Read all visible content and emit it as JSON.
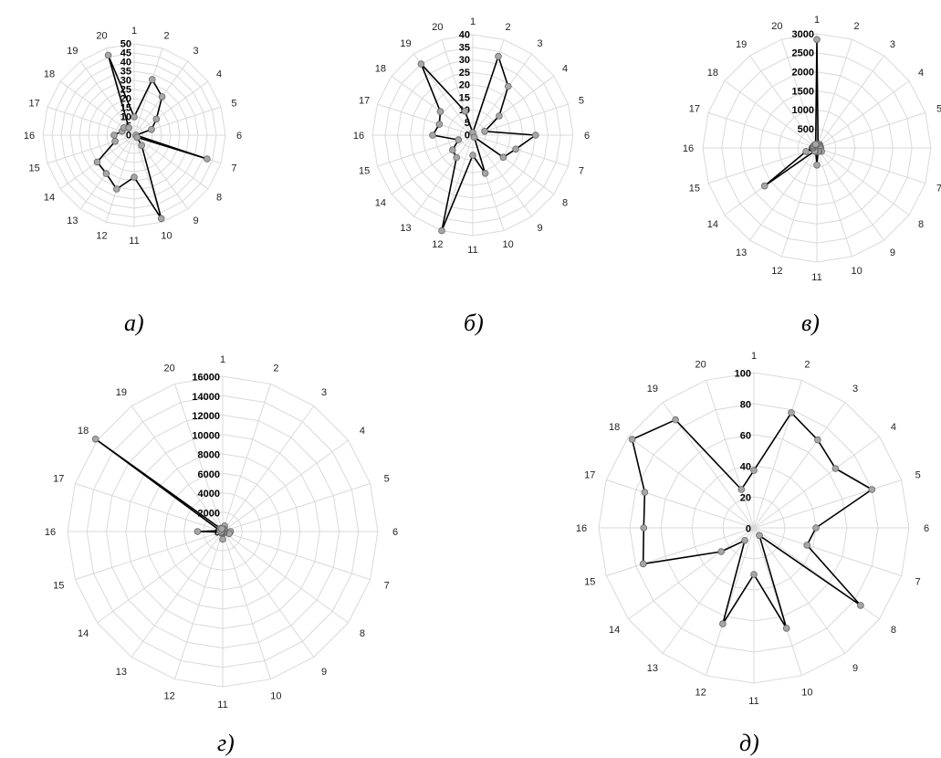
{
  "chart_data": [
    {
      "type": "radar",
      "caption": "а)",
      "categories": [
        "1",
        "2",
        "3",
        "4",
        "5",
        "6",
        "7",
        "8",
        "9",
        "10",
        "11",
        "12",
        "13",
        "14",
        "15",
        "16",
        "17",
        "18",
        "19",
        "20"
      ],
      "values": [
        10,
        32,
        26,
        15,
        10,
        1,
        42,
        2,
        7,
        48,
        23,
        31,
        26,
        25,
        11,
        11,
        7,
        7,
        5,
        46
      ],
      "rlim": [
        0,
        50
      ],
      "r_ticks": [
        0,
        5,
        10,
        15,
        20,
        25,
        30,
        35,
        40,
        45,
        50
      ],
      "grid": true
    },
    {
      "type": "radar",
      "caption": "б)",
      "categories": [
        "1",
        "2",
        "3",
        "4",
        "5",
        "6",
        "7",
        "8",
        "9",
        "10",
        "11",
        "12",
        "13",
        "14",
        "15",
        "16",
        "17",
        "18",
        "19",
        "20"
      ],
      "values": [
        1,
        33,
        24,
        13,
        5,
        25,
        18,
        15,
        1,
        16,
        8,
        40,
        11,
        10,
        6,
        16,
        14,
        16,
        35,
        10
      ],
      "rlim": [
        0,
        40
      ],
      "r_ticks": [
        0,
        5,
        10,
        15,
        20,
        25,
        30,
        35,
        40
      ],
      "grid": true
    },
    {
      "type": "radar",
      "caption": "в)",
      "categories": [
        "1",
        "2",
        "3",
        "4",
        "5",
        "6",
        "7",
        "8",
        "9",
        "10",
        "11",
        "12",
        "13",
        "14",
        "15",
        "16",
        "17",
        "18",
        "19",
        "20"
      ],
      "values": [
        2850,
        100,
        120,
        100,
        100,
        100,
        100,
        150,
        100,
        100,
        450,
        100,
        100,
        1700,
        300,
        100,
        100,
        100,
        100,
        100
      ],
      "rlim": [
        0,
        3000
      ],
      "r_ticks": [
        0,
        500,
        1000,
        1500,
        2000,
        2500,
        3000
      ],
      "grid": true
    },
    {
      "type": "radar",
      "caption": "г)",
      "categories": [
        "1",
        "2",
        "3",
        "4",
        "5",
        "6",
        "7",
        "8",
        "9",
        "10",
        "11",
        "12",
        "13",
        "14",
        "15",
        "16",
        "17",
        "18",
        "19",
        "20"
      ],
      "values": [
        300,
        600,
        300,
        200,
        200,
        800,
        700,
        200,
        200,
        200,
        800,
        200,
        200,
        200,
        200,
        2600,
        300,
        16200,
        400,
        300
      ],
      "rlim": [
        0,
        16000
      ],
      "r_ticks": [
        0,
        2000,
        4000,
        6000,
        8000,
        10000,
        12000,
        14000,
        16000
      ],
      "grid": true
    },
    {
      "type": "radar",
      "caption": "д)",
      "categories": [
        "1",
        "2",
        "3",
        "4",
        "5",
        "6",
        "7",
        "8",
        "9",
        "10",
        "11",
        "12",
        "13",
        "14",
        "15",
        "16",
        "17",
        "18",
        "19",
        "20"
      ],
      "values": [
        37,
        78,
        70,
        65,
        80,
        40,
        36,
        85,
        6,
        68,
        30,
        65,
        10,
        26,
        75,
        71,
        74,
        97,
        86,
        26
      ],
      "rlim": [
        0,
        100
      ],
      "r_ticks": [
        0,
        20,
        40,
        60,
        80,
        100
      ],
      "grid": true
    }
  ]
}
